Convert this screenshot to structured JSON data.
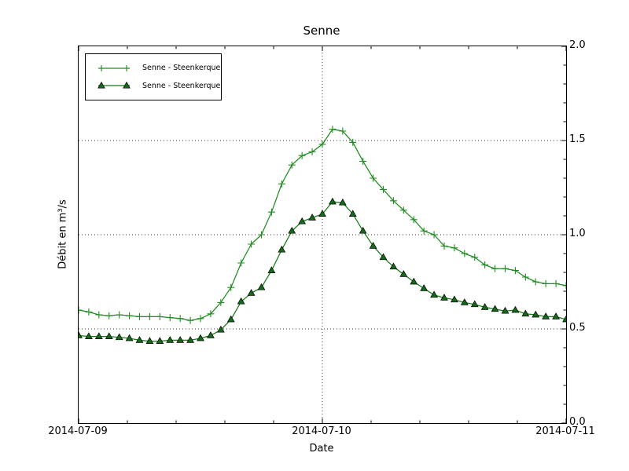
{
  "figure_title": "Senne",
  "axes": {
    "xlabel": "Date",
    "ylabel": "Débit en m³/s",
    "x_ticks": [
      {
        "label": "2014-07-09",
        "hour": 0
      },
      {
        "label": "2014-07-10",
        "hour": 24
      },
      {
        "label": "2014-07-11",
        "hour": 48
      }
    ],
    "y_ticks": [
      {
        "label": "0.0",
        "value": 0.0
      },
      {
        "label": "0.5",
        "value": 0.5
      },
      {
        "label": "1.0",
        "value": 1.0
      },
      {
        "label": "1.5",
        "value": 1.5
      },
      {
        "label": "2.0",
        "value": 2.0
      }
    ]
  },
  "legend": {
    "entries": [
      {
        "label": "Senne - Steenkerque",
        "marker": "plus"
      },
      {
        "label": "Senne - Steenkerque",
        "marker": "triangle"
      }
    ]
  },
  "colors": {
    "series_plus_line": "#1e8c1e",
    "series_triangle_line": "#157a15",
    "series_triangle_fill": "#14691b",
    "marker_edge": "#000000",
    "grid": "#333333",
    "axes_edge": "#000000",
    "background": "#ffffff"
  },
  "chart_data": {
    "type": "line",
    "title": "Senne",
    "xlabel": "Date",
    "ylabel": "Débit en m³/s",
    "ylim": [
      0.0,
      2.0
    ],
    "xlim_labels": [
      "2014-07-09",
      "2014-07-11"
    ],
    "x_unit": "hours since 2014-07-09 00:00",
    "grid": {
      "y_values": [
        0.5,
        1.0,
        1.5
      ],
      "x_hours": [
        24
      ],
      "style": "dotted"
    },
    "legend_position": "upper left",
    "x": [
      0,
      1,
      2,
      3,
      4,
      5,
      6,
      7,
      8,
      9,
      10,
      11,
      12,
      13,
      14,
      15,
      16,
      17,
      18,
      19,
      20,
      21,
      22,
      23,
      24,
      25,
      26,
      27,
      28,
      29,
      30,
      31,
      32,
      33,
      34,
      35,
      36,
      37,
      38,
      39,
      40,
      41,
      42,
      43,
      44,
      45,
      46,
      47,
      48
    ],
    "series": [
      {
        "name": "Senne - Steenkerque",
        "marker": "plus",
        "values": [
          0.6,
          0.59,
          0.575,
          0.57,
          0.575,
          0.57,
          0.565,
          0.565,
          0.565,
          0.56,
          0.555,
          0.545,
          0.555,
          0.58,
          0.64,
          0.72,
          0.85,
          0.95,
          1.0,
          1.12,
          1.27,
          1.37,
          1.42,
          1.44,
          1.48,
          1.56,
          1.55,
          1.49,
          1.39,
          1.3,
          1.24,
          1.18,
          1.13,
          1.08,
          1.02,
          1.0,
          0.94,
          0.93,
          0.9,
          0.88,
          0.84,
          0.82,
          0.82,
          0.81,
          0.775,
          0.75,
          0.74,
          0.74,
          0.73
        ]
      },
      {
        "name": "Senne - Steenkerque",
        "marker": "triangle",
        "values": [
          0.465,
          0.46,
          0.46,
          0.46,
          0.455,
          0.45,
          0.44,
          0.435,
          0.435,
          0.44,
          0.44,
          0.44,
          0.45,
          0.465,
          0.495,
          0.55,
          0.645,
          0.69,
          0.72,
          0.81,
          0.92,
          1.02,
          1.07,
          1.09,
          1.11,
          1.175,
          1.17,
          1.11,
          1.02,
          0.94,
          0.88,
          0.83,
          0.79,
          0.75,
          0.715,
          0.68,
          0.665,
          0.655,
          0.64,
          0.63,
          0.615,
          0.605,
          0.595,
          0.6,
          0.58,
          0.575,
          0.565,
          0.565,
          0.55
        ]
      }
    ]
  }
}
